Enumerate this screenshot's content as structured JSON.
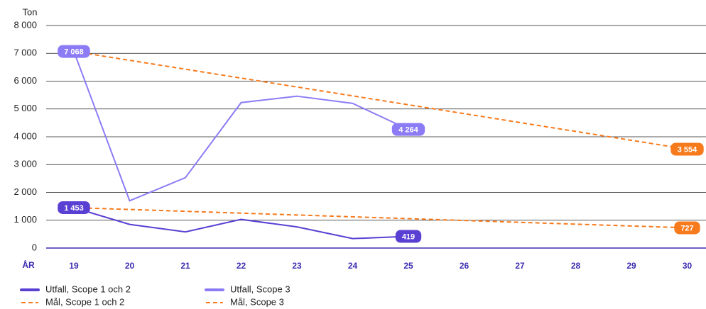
{
  "chart_data": {
    "type": "line",
    "y_label": "Ton",
    "x_label": "ÅR",
    "categories": [
      "19",
      "20",
      "21",
      "22",
      "23",
      "24",
      "25",
      "26",
      "27",
      "28",
      "29",
      "30"
    ],
    "ylim": [
      0,
      8000
    ],
    "yticks": [
      0,
      {
        "value": 1000,
        "label": "1 000"
      },
      {
        "value": 2000,
        "label": "2 000"
      },
      {
        "value": 3000,
        "label": "3 000"
      },
      {
        "value": 4000,
        "label": "4 000"
      },
      {
        "value": 5000,
        "label": "5 000"
      },
      {
        "value": 6000,
        "label": "6 000"
      },
      {
        "value": 7000,
        "label": "7 000"
      },
      {
        "value": 8000,
        "label": "8 000"
      }
    ],
    "grid": true,
    "series": [
      {
        "name": "Utfall, Scope 1 och 2",
        "color": "#5a3fd3",
        "dashed": false,
        "values": [
          1453,
          850,
          580,
          1030,
          760,
          340,
          419,
          null,
          null,
          null,
          null,
          null
        ],
        "value_labels": [
          "1 453",
          null,
          null,
          null,
          null,
          null,
          "419",
          null,
          null,
          null,
          null,
          null
        ]
      },
      {
        "name": "Utfall, Scope 3",
        "color": "#8b7cf5",
        "dashed": false,
        "values": [
          7068,
          1700,
          2530,
          5230,
          5460,
          5200,
          4264,
          null,
          null,
          null,
          null,
          null
        ],
        "value_labels": [
          "7 068",
          null,
          null,
          null,
          null,
          null,
          "4 264",
          null,
          null,
          null,
          null,
          null
        ]
      },
      {
        "name": "Mål, Scope 1 och 2",
        "color": "#f77a1c",
        "dashed": true,
        "values": [
          1453,
          1387,
          1321,
          1255,
          1189,
          1123,
          1057,
          991,
          925,
          859,
          793,
          727
        ],
        "value_labels": [
          null,
          null,
          null,
          null,
          null,
          null,
          null,
          null,
          null,
          null,
          null,
          "727"
        ]
      },
      {
        "name": "Mål, Scope 3",
        "color": "#f77a1c",
        "dashed": true,
        "values": [
          7068,
          6749,
          6429,
          6110,
          5790,
          5471,
          5151,
          4832,
          4512,
          4193,
          3873,
          3554
        ],
        "value_labels": [
          null,
          null,
          null,
          null,
          null,
          null,
          null,
          null,
          null,
          null,
          null,
          "3 554"
        ]
      }
    ]
  }
}
